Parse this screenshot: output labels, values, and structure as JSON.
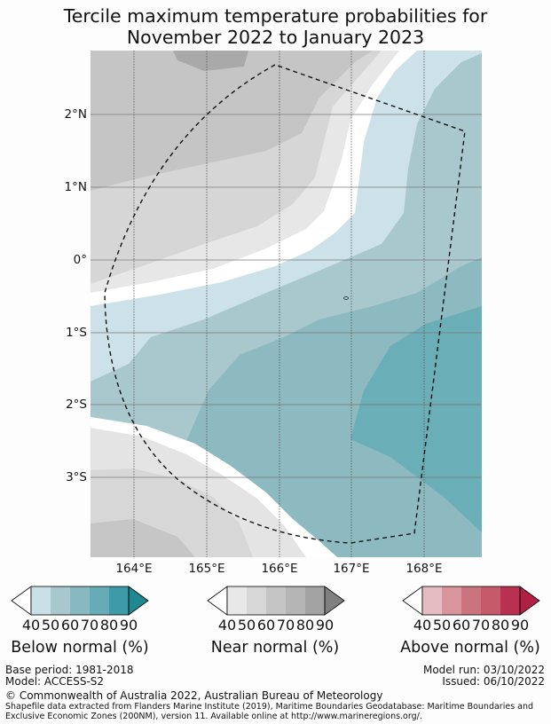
{
  "title": {
    "line1": "Tercile maximum temperature probabilities for",
    "line2": "November 2022 to January 2023"
  },
  "map": {
    "lat_labels": [
      "2°N",
      "1°N",
      "0°",
      "1°S",
      "2°S",
      "3°S"
    ],
    "lon_labels": [
      "164°E",
      "165°E",
      "166°E",
      "167°E",
      "168°E"
    ],
    "boundary_style": "dashed"
  },
  "legends": {
    "below": {
      "title": "Below normal (%)",
      "ticks": [
        "40",
        "50",
        "60",
        "70",
        "80",
        "90"
      ],
      "colors": [
        "#ffffff",
        "#c9e0e6",
        "#a8c8cd",
        "#88b9c0",
        "#65acb7",
        "#3c9ba6",
        "#1f8890"
      ]
    },
    "near": {
      "title": "Near normal (%)",
      "ticks": [
        "40",
        "50",
        "60",
        "70",
        "80",
        "90"
      ],
      "colors": [
        "#ffffff",
        "#e8e8e8",
        "#d7d7d7",
        "#c5c5c5",
        "#b5b5b5",
        "#a3a3a3",
        "#808080"
      ]
    },
    "above": {
      "title": "Above normal (%)",
      "ticks": [
        "40",
        "50",
        "60",
        "70",
        "80",
        "90"
      ],
      "colors": [
        "#ffffff",
        "#e6bcc3",
        "#d8959c",
        "#cb7480",
        "#c65a6b",
        "#b83150",
        "#b01f44"
      ]
    }
  },
  "footer": {
    "base_period": "Base period: 1981-2018",
    "model": "Model: ACCESS-S2",
    "model_run": "Model run: 03/10/2022",
    "issued": "Issued: 06/10/2022",
    "copyright": "© Commonwealth of Australia 2022, Australian Bureau of Meteorology",
    "shapefile_line1": "Shapefile data extracted from Flanders Marine Institute (2019), Maritime Boundaries Geodatabase: Maritime Boundaries and",
    "shapefile_line2": "Exclusive Economic Zones (200NM), version 11. Available online at http://www.marineregions.org/."
  }
}
